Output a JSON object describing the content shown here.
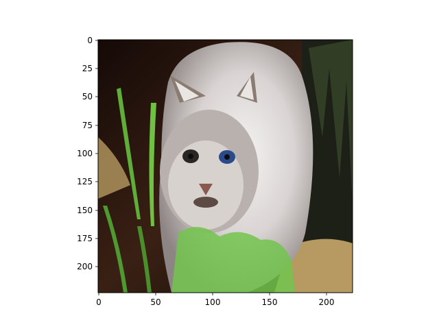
{
  "figure": {
    "description_free": true,
    "x_ticks": [
      "0",
      "50",
      "100",
      "150",
      "200"
    ],
    "y_ticks": [
      "0",
      "25",
      "50",
      "75",
      "100",
      "125",
      "150",
      "175",
      "200"
    ],
    "x_range": [
      0,
      224
    ],
    "y_range": [
      0,
      224
    ],
    "colors": {
      "fur_light": "#e8e6e6",
      "fur_mid": "#9a9493",
      "background_dark": "#1a0f0b",
      "grass_green": "#5fae3a",
      "straw": "#b79a62",
      "eye_blue": "#2b4a8a"
    }
  }
}
